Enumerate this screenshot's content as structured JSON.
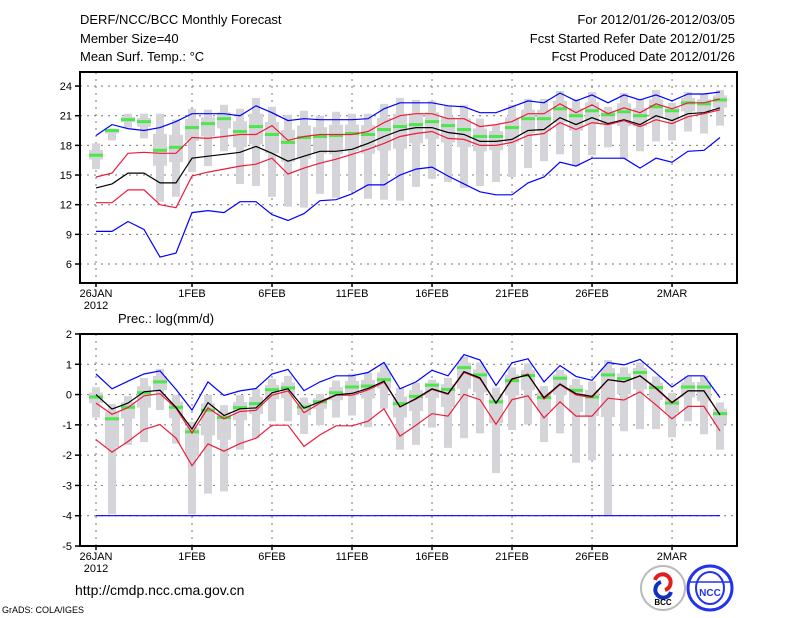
{
  "header": {
    "title": "DERF/NCC/BCC Monthly Forecast",
    "member_size": "Member Size=40",
    "variable": "Mean Surf. Temp.: °C",
    "period": "For 2012/01/26-2012/03/05",
    "started": "Fcst Started Refer Date 2012/01/25",
    "produced": "Fcst Produced Date 2012/01/26"
  },
  "footer": {
    "url": "http://cmdp.ncc.cma.gov.cn",
    "grads": "GrADS: COLA/IGES",
    "logo_bcc": "BCC",
    "logo_ncc": "NCC"
  },
  "colors": {
    "blue": "#0000ff",
    "red": "#ee1c3c",
    "black": "#000000",
    "green": "#4de64d",
    "gray": "#d4d4d9",
    "grid": "#777777"
  },
  "chart_data": [
    {
      "type": "line",
      "title": "Mean Surf. Temp.: °C",
      "ylabel": "°C",
      "ylim": [
        4.08,
        25.42
      ],
      "xlim": [
        -1,
        40.06
      ],
      "yticks": [
        6,
        9,
        12,
        15,
        18,
        21,
        24
      ],
      "xticks": [
        0,
        6,
        11,
        16,
        21,
        26,
        31,
        36
      ],
      "xtick_labels": [
        "26JAN",
        "1FEB",
        "6FEB",
        "11FEB",
        "16FEB",
        "21FEB",
        "26FEB",
        "2MAR"
      ],
      "xtick_year": "2012",
      "grid": true,
      "x": "day index from 2012/01/26 (0..39)",
      "series": [
        {
          "name": "blue_upper",
          "color": "blue",
          "values": [
            19.0,
            20.1,
            19.7,
            19.5,
            19.8,
            20.4,
            21.2,
            21.2,
            21.2,
            21.0,
            22.0,
            21.3,
            20.5,
            20.7,
            20.6,
            20.6,
            20.6,
            20.7,
            21.7,
            22.3,
            22.3,
            22.3,
            22.0,
            21.9,
            21.3,
            21.3,
            21.9,
            22.5,
            22.3,
            23.3,
            22.5,
            23.1,
            22.3,
            23.1,
            22.6,
            23.1,
            22.5,
            23.2,
            23.2,
            23.4
          ]
        },
        {
          "name": "red_upper",
          "color": "red",
          "values": [
            14.8,
            15.2,
            17.2,
            17.3,
            17.2,
            17.2,
            18.8,
            18.7,
            18.9,
            19.1,
            19.1,
            20.0,
            18.5,
            18.9,
            19.1,
            19.1,
            19.1,
            19.4,
            20.3,
            21.0,
            21.2,
            21.2,
            20.7,
            20.7,
            19.9,
            20.1,
            20.4,
            21.2,
            21.2,
            22.2,
            21.3,
            22.1,
            21.2,
            21.8,
            21.3,
            22.2,
            21.7,
            22.3,
            22.3,
            22.7
          ]
        },
        {
          "name": "mean",
          "color": "black",
          "values": [
            13.7,
            14.1,
            15.2,
            15.2,
            14.2,
            14.2,
            16.7,
            16.9,
            17.1,
            17.3,
            17.9,
            17.2,
            16.4,
            16.9,
            17.4,
            17.4,
            17.6,
            18.2,
            18.9,
            19.5,
            19.8,
            19.8,
            19.3,
            19.1,
            18.4,
            18.4,
            18.6,
            19.5,
            19.6,
            20.8,
            20.1,
            20.8,
            20.2,
            20.6,
            20.1,
            21.0,
            20.5,
            21.2,
            21.3,
            21.8
          ]
        },
        {
          "name": "red_lower",
          "color": "red",
          "values": [
            12.2,
            12.2,
            13.5,
            13.5,
            12.0,
            11.7,
            14.9,
            15.3,
            15.6,
            15.9,
            16.1,
            16.7,
            15.1,
            15.7,
            16.2,
            16.6,
            17.1,
            17.6,
            18.2,
            18.9,
            19.2,
            19.4,
            18.7,
            18.6,
            18.0,
            18.0,
            18.3,
            19.0,
            19.2,
            20.3,
            19.6,
            20.3,
            20.1,
            20.5,
            19.9,
            20.6,
            20.2,
            20.9,
            21.2,
            21.6
          ]
        },
        {
          "name": "blue_lower",
          "color": "blue",
          "values": [
            9.3,
            9.3,
            10.3,
            9.5,
            6.7,
            7.1,
            11.2,
            11.4,
            11.2,
            12.3,
            12.3,
            11.0,
            10.4,
            11.1,
            12.4,
            12.5,
            13.1,
            14.0,
            14.0,
            15.0,
            15.6,
            15.8,
            14.9,
            14.1,
            13.3,
            13.0,
            13.0,
            14.2,
            14.8,
            16.3,
            15.9,
            16.7,
            16.7,
            16.7,
            15.7,
            16.7,
            16.3,
            17.4,
            17.5,
            18.8
          ]
        }
      ],
      "boxes": {
        "median": [
          17.0,
          19.5,
          20.6,
          20.4,
          17.5,
          17.8,
          19.8,
          20.2,
          20.7,
          19.4,
          19.9,
          19.1,
          18.3,
          18.8,
          18.9,
          19.0,
          19.2,
          19.1,
          19.6,
          19.9,
          20.1,
          20.4,
          20.0,
          19.6,
          18.9,
          18.9,
          19.8,
          20.7,
          20.7,
          21.7,
          21.0,
          21.5,
          21.1,
          21.4,
          21.0,
          21.9,
          21.5,
          22.3,
          22.2,
          22.6
        ],
        "max": [
          18.2,
          19.7,
          21.2,
          21.2,
          21.2,
          20.6,
          21.7,
          21.6,
          22.1,
          21.7,
          22.8,
          21.9,
          21.1,
          21.5,
          21.0,
          21.4,
          21.2,
          21.2,
          22.2,
          22.8,
          22.6,
          22.5,
          22.0,
          22.1,
          20.7,
          20.1,
          22.1,
          22.7,
          22.7,
          23.5,
          22.7,
          23.4,
          21.9,
          23.3,
          22.7,
          23.6,
          22.3,
          23.4,
          23.2,
          23.6
        ],
        "min": [
          15.6,
          18.5,
          19.8,
          18.7,
          12.3,
          12.8,
          15.3,
          15.9,
          17.4,
          14.1,
          13.9,
          12.8,
          11.8,
          11.7,
          13.1,
          12.7,
          13.4,
          12.6,
          12.5,
          12.4,
          13.8,
          14.6,
          14.3,
          13.7,
          13.9,
          14.3,
          14.8,
          15.7,
          16.4,
          17.1,
          15.9,
          17.0,
          17.8,
          16.6,
          17.4,
          18.4,
          18.5,
          19.4,
          19.2,
          20.0
        ]
      }
    },
    {
      "type": "line",
      "title": "Prec.: log(mm/d)",
      "ylabel": "log(mm/d)",
      "ylim": [
        -5,
        2
      ],
      "xlim": [
        -1,
        40.06
      ],
      "yticks": [
        -5,
        -4,
        -3,
        -2,
        -1,
        0,
        1,
        2
      ],
      "xticks": [
        0,
        6,
        11,
        16,
        21,
        26,
        31,
        36
      ],
      "xtick_labels": [
        "26JAN",
        "1FEB",
        "6FEB",
        "11FEB",
        "16FEB",
        "21FEB",
        "26FEB",
        "2MAR"
      ],
      "xtick_year": "2012",
      "grid": true,
      "series": [
        {
          "name": "blue_upper",
          "color": "blue",
          "values": [
            0.68,
            0.19,
            0.44,
            0.68,
            0.78,
            0.17,
            -0.51,
            0.42,
            -0.03,
            0.12,
            0.2,
            0.68,
            0.83,
            0.13,
            0.42,
            0.62,
            0.62,
            0.73,
            1.06,
            0.19,
            0.42,
            0.8,
            0.62,
            1.32,
            1.14,
            0.3,
            1.05,
            1.18,
            0.42,
            0.96,
            0.6,
            0.47,
            1.06,
            0.98,
            1.16,
            0.71,
            0.25,
            0.62,
            0.62,
            -0.1
          ]
        },
        {
          "name": "red_upper",
          "color": "red",
          "values": [
            -0.28,
            -0.65,
            -0.43,
            -0.04,
            0.03,
            -0.45,
            -1.27,
            -0.44,
            -0.8,
            -0.56,
            -0.52,
            -0.02,
            0.12,
            -0.6,
            -0.28,
            -0.02,
            -0.02,
            0.15,
            0.41,
            -0.4,
            -0.15,
            0.17,
            0.01,
            0.73,
            0.52,
            -0.28,
            0.49,
            0.68,
            -0.15,
            0.33,
            -0.01,
            -0.1,
            0.49,
            0.42,
            0.62,
            0.19,
            -0.28,
            0.12,
            0.12,
            -0.67
          ]
        },
        {
          "name": "mean",
          "color": "black",
          "values": [
            0,
            -0.48,
            -0.28,
            0.09,
            0.14,
            -0.42,
            -1.14,
            -0.27,
            -0.69,
            -0.47,
            -0.44,
            0.06,
            0.19,
            -0.45,
            -0.24,
            -0.01,
            0.04,
            0.2,
            0.44,
            -0.41,
            -0.13,
            0.19,
            0.03,
            0.76,
            0.55,
            -0.28,
            0.52,
            0.65,
            -0.1,
            0.35,
            0.03,
            -0.06,
            0.49,
            0.42,
            0.62,
            0.22,
            -0.26,
            0.12,
            0.12,
            -0.67
          ]
        },
        {
          "name": "red_lower",
          "color": "red",
          "values": [
            -1.49,
            -1.9,
            -1.55,
            -1.15,
            -0.99,
            -1.44,
            -2.35,
            -1.63,
            -1.87,
            -1.62,
            -1.44,
            -1.01,
            -1.01,
            -1.71,
            -1.33,
            -1.03,
            -1.03,
            -0.88,
            -0.47,
            -1.37,
            -1.01,
            -0.63,
            -0.71,
            0.01,
            -0.17,
            -0.98,
            -0.17,
            -0.04,
            -0.77,
            -0.24,
            -0.71,
            -0.71,
            -0.12,
            -0.18,
            0.09,
            -0.34,
            -0.8,
            -0.39,
            -0.39,
            -1.2
          ]
        },
        {
          "name": "blue_lower",
          "color": "blue",
          "values": [
            -4,
            -4,
            -4,
            -4,
            -4,
            -4,
            -4,
            -4,
            -4,
            -4,
            -4,
            -4,
            -4,
            -4,
            -4,
            -4,
            -4,
            -4,
            -4,
            -4,
            -4,
            -4,
            -4,
            -4,
            -4,
            -4,
            -4,
            -4,
            -4,
            -4,
            -4,
            -4,
            -4,
            -4,
            -4,
            -4,
            -4,
            -4,
            -4,
            -4
          ]
        }
      ],
      "boxes": {
        "median": [
          -0.08,
          -0.8,
          -0.42,
          0.06,
          0.42,
          -0.42,
          -1.23,
          -0.52,
          -0.76,
          -0.43,
          -0.3,
          0.16,
          0.22,
          -0.41,
          -0.24,
          0.06,
          0.25,
          0.28,
          0.49,
          -0.3,
          -0.06,
          0.31,
          0.17,
          0.89,
          0.65,
          -0.24,
          0.46,
          0.63,
          -0.1,
          0.54,
          0.14,
          -0.08,
          0.65,
          0.53,
          0.73,
          0.23,
          -0.28,
          0.25,
          0.25,
          -0.63
        ],
        "max": [
          0.24,
          -0.31,
          -0.05,
          0.55,
          0.85,
          -0.01,
          -0.9,
          -0.01,
          -0.35,
          -0.02,
          0.19,
          0.52,
          0.62,
          -0.1,
          0.01,
          0.46,
          0.69,
          0.73,
          1.03,
          0.22,
          0.39,
          0.49,
          0.55,
          1.25,
          1.06,
          0.23,
          0.9,
          1.03,
          0.28,
          0.82,
          0.52,
          0.44,
          1.14,
          0.9,
          1.06,
          0.6,
          0.06,
          0.6,
          0.62,
          -0.26
        ],
        "min": [
          -0.76,
          -3.95,
          -1.66,
          -1.57,
          -0.51,
          -1.62,
          -3.95,
          -3.27,
          -3.2,
          -1.82,
          -1.44,
          -0.88,
          -0.88,
          -1.3,
          -1.01,
          -0.76,
          -0.69,
          -1.08,
          -0.47,
          -1.82,
          -1.66,
          -1.09,
          -1.76,
          -1.44,
          -1.28,
          -2.59,
          -1.17,
          -0.99,
          -1.57,
          -1.28,
          -2.25,
          -2.17,
          -3.99,
          -1.21,
          -1.14,
          -1.14,
          -1.41,
          -0.88,
          -1.31,
          -1.82
        ]
      }
    }
  ]
}
